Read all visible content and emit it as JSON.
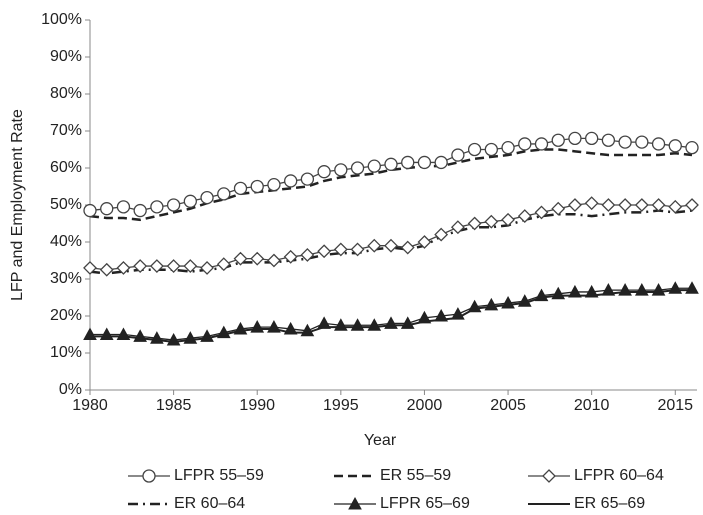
{
  "chart_data": {
    "type": "line",
    "x_label": "Year",
    "y_label": "LFP and Employment Rate",
    "x": [
      1980,
      1981,
      1982,
      1983,
      1984,
      1985,
      1986,
      1987,
      1988,
      1989,
      1990,
      1991,
      1992,
      1993,
      1994,
      1995,
      1996,
      1997,
      1998,
      1999,
      2000,
      2001,
      2002,
      2003,
      2004,
      2005,
      2006,
      2007,
      2008,
      2009,
      2010,
      2011,
      2012,
      2013,
      2014,
      2015,
      2016
    ],
    "xlim": [
      1980,
      2016
    ],
    "xticks": [
      1980,
      1985,
      1990,
      1995,
      2000,
      2005,
      2010,
      2015
    ],
    "ylim": [
      0,
      100
    ],
    "yticks": [
      {
        "value": 0,
        "label": "0%"
      },
      {
        "value": 10,
        "label": "10%"
      },
      {
        "value": 20,
        "label": "20%"
      },
      {
        "value": 30,
        "label": "30%"
      },
      {
        "value": 40,
        "label": "40%"
      },
      {
        "value": 50,
        "label": "50%"
      },
      {
        "value": 60,
        "label": "60%"
      },
      {
        "value": 70,
        "label": "70%"
      },
      {
        "value": 80,
        "label": "80%"
      },
      {
        "value": 90,
        "label": "90%"
      },
      {
        "value": 100,
        "label": "100%"
      }
    ],
    "grid": false,
    "legend": "bottom",
    "series": [
      {
        "name": "LFPR 55–59",
        "color": "#444444",
        "marker": "circle",
        "line_style": "solid",
        "values": [
          48.5,
          49,
          49.5,
          48.5,
          49.5,
          50,
          51,
          52,
          53,
          54.5,
          55,
          55.5,
          56.5,
          57,
          59,
          59.5,
          60,
          60.5,
          61,
          61.5,
          61.5,
          61.5,
          63.5,
          65,
          65,
          65.5,
          66.5,
          66.5,
          67.5,
          68,
          68,
          67.5,
          67,
          67,
          66.5,
          66,
          65.5
        ]
      },
      {
        "name": "ER 55–59",
        "color": "#222222",
        "marker": "none",
        "line_style": "dashed",
        "values": [
          47,
          46.5,
          46.5,
          46,
          47,
          48,
          49,
          50.5,
          51.5,
          53,
          53.5,
          54,
          54.5,
          55,
          56.5,
          57.5,
          58,
          58.5,
          59.5,
          60,
          60.5,
          60.5,
          61.5,
          62.5,
          63,
          63.5,
          64.5,
          65,
          65,
          64.5,
          64,
          63.5,
          63.5,
          63.5,
          63.5,
          64,
          63.5
        ]
      },
      {
        "name": "LFPR 60–64",
        "color": "#444444",
        "marker": "diamond",
        "line_style": "solid",
        "values": [
          33,
          32.5,
          33,
          33.5,
          33.5,
          33.5,
          33.5,
          33,
          34,
          35.5,
          35.5,
          35,
          36,
          36.5,
          37.5,
          38,
          38,
          39,
          39,
          38.5,
          40,
          42,
          44,
          45,
          45.5,
          46,
          47,
          48,
          49,
          50,
          50.5,
          50,
          50,
          50,
          50,
          49.5,
          50
        ]
      },
      {
        "name": "ER 60–64",
        "color": "#222222",
        "marker": "none",
        "line_style": "dashdot",
        "values": [
          32,
          31.5,
          32,
          32.5,
          32.5,
          32.5,
          32,
          32.5,
          33,
          34.5,
          34.5,
          34.5,
          35,
          35.5,
          36.5,
          37,
          37,
          38,
          38.5,
          38,
          39,
          41.5,
          43,
          44,
          44,
          44.5,
          46,
          47,
          47.5,
          47.5,
          47,
          47.5,
          48,
          48,
          48.5,
          48,
          48.5
        ]
      },
      {
        "name": "LFPR 65–69",
        "color": "#222222",
        "marker": "triangle",
        "line_style": "solid",
        "values": [
          15,
          15,
          15,
          14.5,
          14,
          13.5,
          14,
          14.5,
          15.5,
          16.5,
          17,
          17,
          16.5,
          16,
          18,
          17.5,
          17.5,
          17.5,
          18,
          18,
          19.5,
          20,
          20.5,
          22.5,
          23,
          23.5,
          24,
          25.5,
          26,
          26.5,
          26.5,
          27,
          27,
          27,
          27,
          27.5,
          27.5
        ]
      },
      {
        "name": "ER 65–69",
        "color": "#222222",
        "marker": "none",
        "line_style": "solid",
        "values": [
          14.5,
          14.5,
          14.5,
          14,
          13.5,
          13,
          13.5,
          14,
          15,
          16,
          16.5,
          16.5,
          15.5,
          15.5,
          17,
          17,
          17,
          17,
          17.5,
          17.5,
          18.5,
          19,
          19.5,
          22,
          22.5,
          23,
          23.5,
          25,
          25.5,
          25.5,
          25.5,
          26,
          26.5,
          26.5,
          26.5,
          27,
          27
        ]
      }
    ]
  }
}
